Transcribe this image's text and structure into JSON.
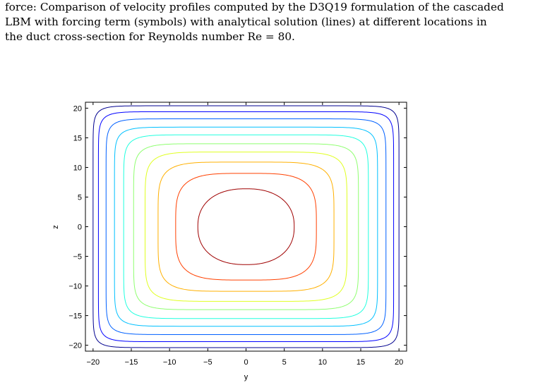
{
  "caption": {
    "line1": "force: Comparison of velocity profiles computed by the D3Q19 formulation of the cascaded",
    "line2": "LBM with forcing term (symbols) with analytical solution (lines) at different locations in",
    "line3": "the duct cross-section for Reynolds number Re = 80."
  },
  "chart_data": {
    "type": "contour",
    "xlabel": "y",
    "ylabel": "z",
    "xlim": [
      -21,
      21
    ],
    "ylim": [
      -21,
      21
    ],
    "x_ticks": [
      -20,
      -15,
      -10,
      -5,
      0,
      5,
      10,
      15,
      20
    ],
    "y_ticks": [
      -20,
      -15,
      -10,
      -5,
      0,
      5,
      10,
      15,
      20
    ],
    "x_tick_labels": [
      "−20",
      "−15",
      "−10",
      "−5",
      "0",
      "5",
      "10",
      "15",
      "20"
    ],
    "y_tick_labels": [
      "−20",
      "−15",
      "−10",
      "−5",
      "0",
      "5",
      "10",
      "15",
      "20"
    ],
    "grid": false,
    "colormap": "jet",
    "levels": [
      {
        "half_width": 20.0,
        "half_height": 20.4,
        "color": "#00008f"
      },
      {
        "half_width": 19.3,
        "half_height": 19.4,
        "color": "#0000ff"
      },
      {
        "half_width": 18.3,
        "half_height": 18.2,
        "color": "#0060ff"
      },
      {
        "half_width": 17.2,
        "half_height": 16.8,
        "color": "#00c0ff"
      },
      {
        "half_width": 16.0,
        "half_height": 15.5,
        "color": "#20ffdf"
      },
      {
        "half_width": 14.7,
        "half_height": 14.0,
        "color": "#8fff70"
      },
      {
        "half_width": 13.2,
        "half_height": 12.6,
        "color": "#e0ff20"
      },
      {
        "half_width": 11.5,
        "half_height": 10.9,
        "color": "#ffb000"
      },
      {
        "half_width": 9.2,
        "half_height": 9.0,
        "color": "#ff4000"
      },
      {
        "half_width": 6.3,
        "half_height": 6.4,
        "color": "#9f0000"
      }
    ]
  }
}
